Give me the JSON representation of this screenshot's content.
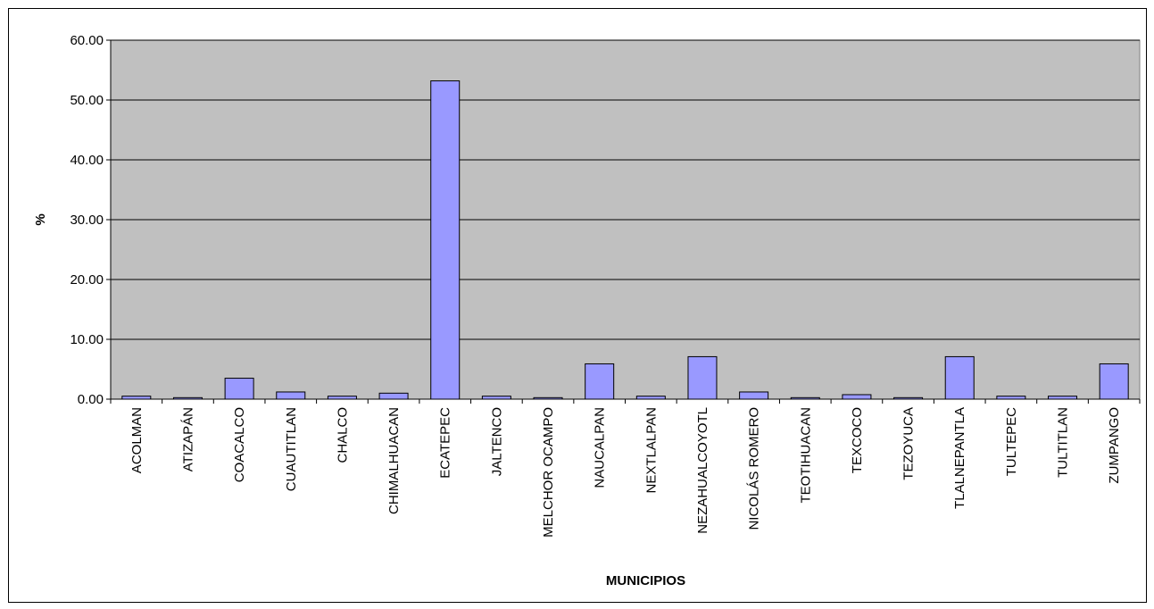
{
  "chart_data": {
    "type": "bar",
    "title": "",
    "xlabel": "MUNICIPIOS",
    "ylabel": "%",
    "ylim": [
      0,
      60
    ],
    "yticks": [
      "0.00",
      "10.00",
      "20.00",
      "30.00",
      "40.00",
      "50.00",
      "60.00"
    ],
    "grid": true,
    "legend": "none",
    "categories": [
      "ACOLMAN",
      "ATIZAPÁN",
      "COACALCO",
      "CUAUTITLAN",
      "CHALCO",
      "CHIMALHUACAN",
      "ECATEPEC",
      "JALTENCO",
      "MELCHOR OCAMPO",
      "NAUCALPAN",
      "NEXTLALPAN",
      "NEZAHUALCOYOTL",
      "NICOLÁS ROMERO",
      "TEOTIHUACAN",
      "TEXCOCO",
      "TEZOYUCA",
      "TLALNEPANTLA",
      "TULTEPEC",
      "TULTITLAN",
      "ZUMPANGO"
    ],
    "values": [
      0.5,
      0.25,
      3.5,
      1.2,
      0.5,
      1.0,
      53.2,
      0.5,
      0.25,
      5.9,
      0.5,
      7.1,
      1.2,
      0.25,
      0.75,
      0.25,
      7.1,
      0.5,
      0.5,
      5.9
    ]
  },
  "colors": {
    "plot_background": "#c0c0c0",
    "bar_fill": "#9999ff",
    "bar_stroke": "#000000",
    "gridline": "#000000"
  }
}
